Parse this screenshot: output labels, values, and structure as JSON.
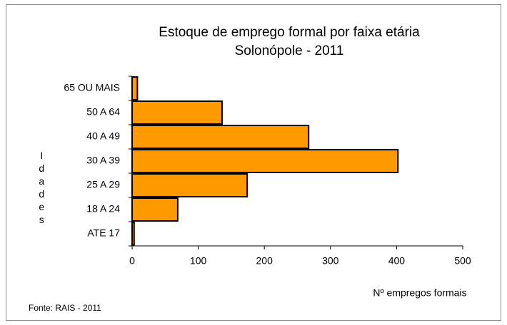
{
  "chart_data": {
    "type": "barh",
    "title": "Estoque de emprego formal por faixa etária",
    "subtitle": "Solonópole - 2011",
    "y_label": "Idades",
    "x_label": "Nº empregos formais",
    "source": "Fonte: RAIS - 2011",
    "categories": [
      "ATE 17",
      "18 A 24",
      "25 A 29",
      "30 A 39",
      "40 A 49",
      "50 A 64",
      "65 OU MAIS"
    ],
    "values": [
      3,
      69,
      174,
      402,
      267,
      136,
      8
    ],
    "color": "#ff9900",
    "xlim": [
      0,
      500
    ],
    "xticks": [
      0,
      100,
      200,
      300,
      400,
      500
    ],
    "grid": false
  }
}
